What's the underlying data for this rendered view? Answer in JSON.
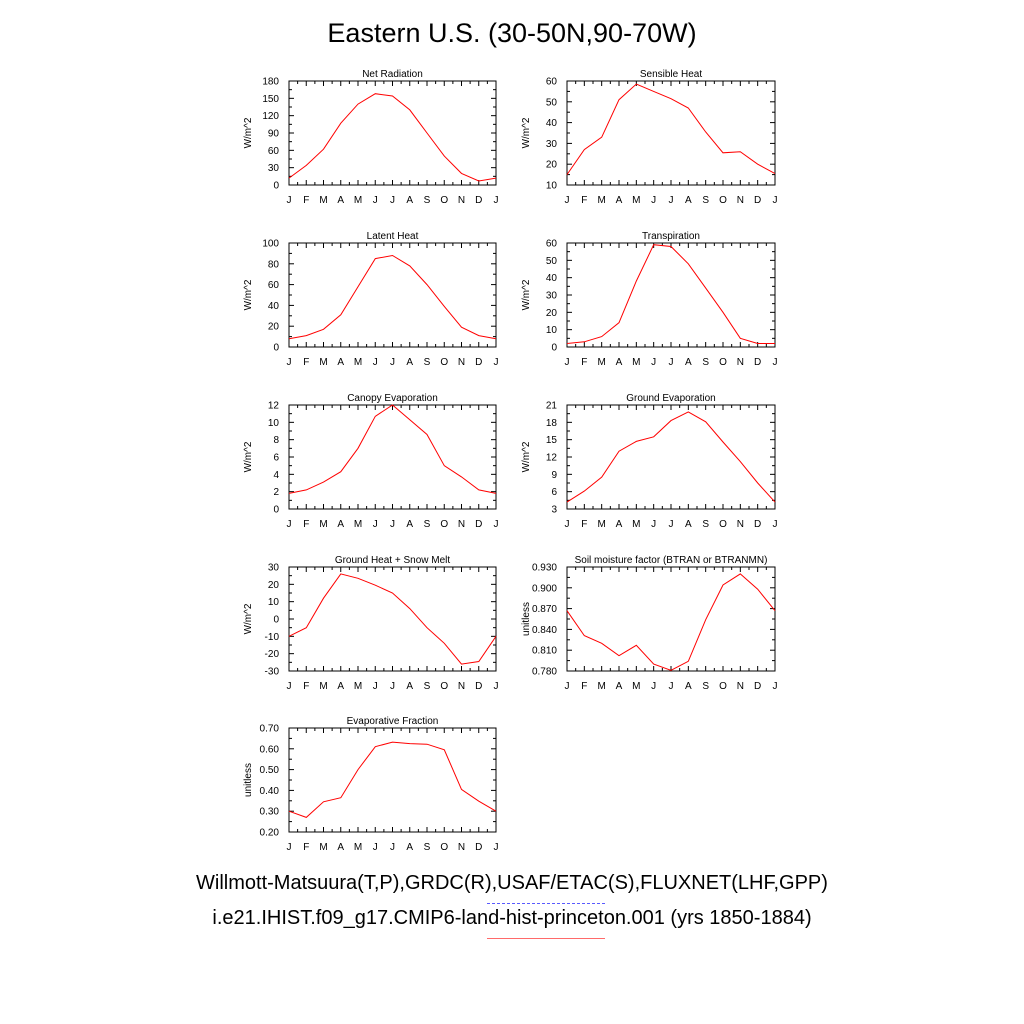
{
  "title": "Eastern U.S. (30-50N,90-70W)",
  "footer": {
    "observations_label": "Willmott-Matsuura(T,P),GRDC(R),USAF/ETAC(S),FLUXNET(LHF,GPP)",
    "model_label": "i.e21.IHIST.f09_g17.CMIP6-land-hist-princeton.001 (yrs 1850-1884)",
    "observations_line_color": "#5a5aff",
    "model_line_color": "#ff6a6a"
  },
  "chart_data": [
    {
      "type": "line",
      "title": "Net Radiation",
      "ylabel": "W/m^2",
      "xlabel": "",
      "categories": [
        "J",
        "F",
        "M",
        "A",
        "M",
        "J",
        "J",
        "A",
        "S",
        "O",
        "N",
        "D",
        "J"
      ],
      "ylim": [
        0,
        180
      ],
      "yticks": [
        "0",
        "30",
        "60",
        "90",
        "120",
        "150",
        "180"
      ],
      "series": [
        {
          "color": "#ff0000",
          "values": [
            12,
            34,
            62,
            107,
            140,
            158,
            154,
            130,
            90,
            50,
            20,
            7,
            12
          ]
        }
      ]
    },
    {
      "type": "line",
      "title": "Sensible Heat",
      "ylabel": "W/m^2",
      "xlabel": "",
      "categories": [
        "J",
        "F",
        "M",
        "A",
        "M",
        "J",
        "J",
        "A",
        "S",
        "O",
        "N",
        "D",
        "J"
      ],
      "ylim": [
        10,
        60
      ],
      "yticks": [
        "10",
        "20",
        "30",
        "40",
        "50",
        "60"
      ],
      "series": [
        {
          "color": "#ff0000",
          "values": [
            15,
            27,
            33,
            51,
            58.5,
            55,
            51.5,
            47,
            35.5,
            25.5,
            26,
            20,
            15.5
          ]
        }
      ]
    },
    {
      "type": "line",
      "title": "Latent Heat",
      "ylabel": "W/m^2",
      "xlabel": "",
      "categories": [
        "J",
        "F",
        "M",
        "A",
        "M",
        "J",
        "J",
        "A",
        "S",
        "O",
        "N",
        "D",
        "J"
      ],
      "ylim": [
        0,
        100
      ],
      "yticks": [
        "0",
        "20",
        "40",
        "60",
        "80",
        "100"
      ],
      "series": [
        {
          "color": "#ff0000",
          "values": [
            8,
            11,
            17,
            31,
            58,
            85,
            88,
            78,
            60,
            39,
            19,
            11,
            8
          ]
        }
      ]
    },
    {
      "type": "line",
      "title": "Transpiration",
      "ylabel": "W/m^2",
      "xlabel": "",
      "categories": [
        "J",
        "F",
        "M",
        "A",
        "M",
        "J",
        "J",
        "A",
        "S",
        "O",
        "N",
        "D",
        "J"
      ],
      "ylim": [
        0,
        60
      ],
      "yticks": [
        "0",
        "10",
        "20",
        "30",
        "40",
        "50",
        "60"
      ],
      "series": [
        {
          "color": "#ff0000",
          "values": [
            2,
            3,
            6,
            14,
            38,
            59,
            58,
            48,
            34,
            20,
            5,
            2,
            2
          ]
        }
      ]
    },
    {
      "type": "line",
      "title": "Canopy Evaporation",
      "ylabel": "W/m^2",
      "xlabel": "",
      "categories": [
        "J",
        "F",
        "M",
        "A",
        "M",
        "J",
        "J",
        "A",
        "S",
        "O",
        "N",
        "D",
        "J"
      ],
      "ylim": [
        0,
        12
      ],
      "yticks": [
        "0",
        "2",
        "4",
        "6",
        "8",
        "10",
        "12"
      ],
      "series": [
        {
          "color": "#ff0000",
          "values": [
            1.8,
            2.2,
            3.1,
            4.3,
            7,
            10.7,
            12,
            10.3,
            8.6,
            5,
            3.7,
            2.2,
            1.8
          ]
        }
      ]
    },
    {
      "type": "line",
      "title": "Ground Evaporation",
      "ylabel": "W/m^2",
      "xlabel": "",
      "categories": [
        "J",
        "F",
        "M",
        "A",
        "M",
        "J",
        "J",
        "A",
        "S",
        "O",
        "N",
        "D",
        "J"
      ],
      "ylim": [
        3,
        21
      ],
      "yticks": [
        "3",
        "6",
        "9",
        "12",
        "15",
        "18",
        "21"
      ],
      "series": [
        {
          "color": "#ff0000",
          "values": [
            4.2,
            6.1,
            8.5,
            13,
            14.7,
            15.5,
            18.3,
            19.8,
            18.1,
            14.6,
            11.2,
            7.5,
            4.2
          ]
        }
      ]
    },
    {
      "type": "line",
      "title": "Ground Heat + Snow Melt",
      "ylabel": "W/m^2",
      "xlabel": "",
      "categories": [
        "J",
        "F",
        "M",
        "A",
        "M",
        "J",
        "J",
        "A",
        "S",
        "O",
        "N",
        "D",
        "J"
      ],
      "ylim": [
        -30,
        30
      ],
      "yticks": [
        "-30",
        "-20",
        "-10",
        "0",
        "10",
        "20",
        "30"
      ],
      "series": [
        {
          "color": "#ff0000",
          "values": [
            -10,
            -5,
            12,
            26,
            23.5,
            19.5,
            15,
            6,
            -5,
            -14,
            -26,
            -24.5,
            -10
          ]
        }
      ]
    },
    {
      "type": "line",
      "title": "Soil moisture factor (BTRAN or BTRANMN)",
      "ylabel": "unitless",
      "xlabel": "",
      "categories": [
        "J",
        "F",
        "M",
        "A",
        "M",
        "J",
        "J",
        "A",
        "S",
        "O",
        "N",
        "D",
        "J"
      ],
      "ylim": [
        0.78,
        0.93
      ],
      "yticks": [
        "0.780",
        "0.810",
        "0.840",
        "0.870",
        "0.900",
        "0.930"
      ],
      "series": [
        {
          "color": "#ff0000",
          "values": [
            0.867,
            0.831,
            0.82,
            0.802,
            0.817,
            0.79,
            0.781,
            0.794,
            0.854,
            0.904,
            0.92,
            0.898,
            0.867
          ]
        }
      ]
    },
    {
      "type": "line",
      "title": "Evaporative Fraction",
      "ylabel": "unitless",
      "xlabel": "",
      "categories": [
        "J",
        "F",
        "M",
        "A",
        "M",
        "J",
        "J",
        "A",
        "S",
        "O",
        "N",
        "D",
        "J"
      ],
      "ylim": [
        0.2,
        0.7
      ],
      "yticks": [
        "0.20",
        "0.30",
        "0.40",
        "0.50",
        "0.60",
        "0.70"
      ],
      "series": [
        {
          "color": "#ff0000",
          "values": [
            0.3,
            0.27,
            0.345,
            0.365,
            0.5,
            0.61,
            0.632,
            0.625,
            0.622,
            0.595,
            0.405,
            0.348,
            0.3
          ]
        }
      ]
    }
  ]
}
